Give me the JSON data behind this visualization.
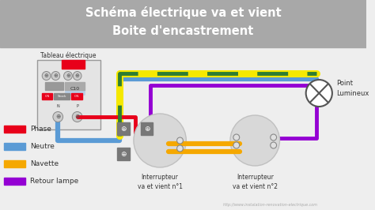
{
  "title_line1": "Schéma électrique va et vient",
  "title_line2": "Boite d'encastrement",
  "title_bg": "#a8a8a8",
  "title_text_color": "#ffffff",
  "main_bg": "#eeeeee",
  "legend_items": [
    {
      "label": "Phase",
      "color": "#e8001a"
    },
    {
      "label": "Neutre",
      "color": "#5b9bd5"
    },
    {
      "label": "Navette",
      "color": "#f5a800"
    },
    {
      "label": "Retour lampe",
      "color": "#9400d3"
    }
  ],
  "tableau_label": "Tableau électrique",
  "interrupteur1_label": "Interrupteur\nva et vient n°1",
  "interrupteur2_label": "Interrupteur\nva et vient n°2",
  "point_lumineux_label": "Point\nLumineux",
  "url_text": "http://www.instalation-renovation-electrique.com",
  "url_color": "#aaaaaa",
  "colors": {
    "phase": "#e8001a",
    "neutre": "#5b9bd5",
    "navette": "#f5a800",
    "retour": "#9400d3",
    "green": "#2e7d32",
    "yellow": "#f5e800",
    "tableau_border": "#999999",
    "switch_circle": "#d4d4d4",
    "switch_box": "#777777",
    "breaker_blue": "#b8d0e8"
  },
  "lw": 3.5
}
